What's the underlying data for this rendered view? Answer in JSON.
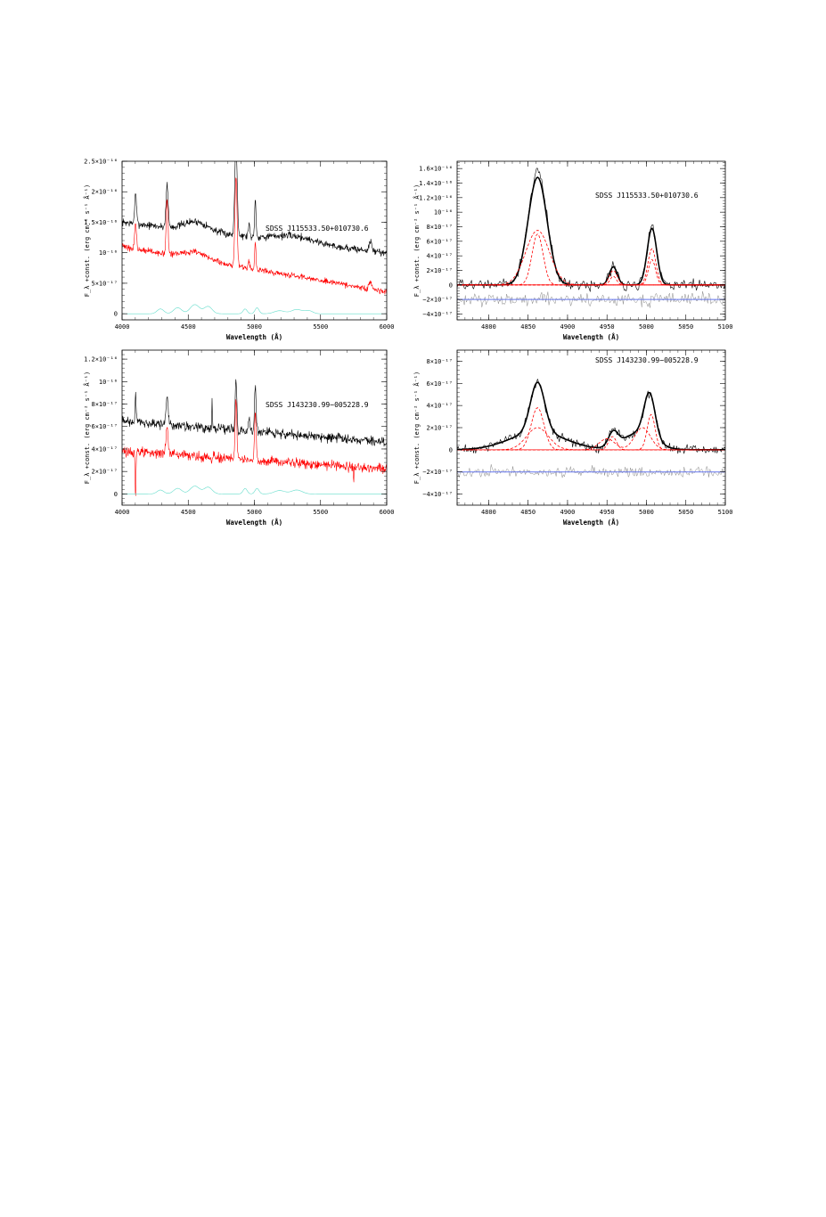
{
  "chart_data": [
    {
      "type": "line",
      "panel": "top-left",
      "object_label": "SDSS  J115533.50+010730.6",
      "xlabel": "Wavelength (Å)",
      "ylabel": "F_λ +const. (erg cm⁻² s⁻¹ Å⁻¹)",
      "xlim": [
        4000,
        6000
      ],
      "ylim": [
        -1e-17,
        2.5e-16
      ],
      "x_ticks": [
        4000,
        4500,
        5000,
        5500,
        6000
      ],
      "x_tick_labels": [
        "4000",
        "4500",
        "5000",
        "5500",
        "6000"
      ],
      "y_ticks": [
        0,
        5e-17,
        1e-16,
        1.5e-16,
        2e-16,
        2.5e-16
      ],
      "y_tick_labels": [
        "0",
        "5×10⁻¹⁷",
        "10⁻¹⁶",
        "1.5×10⁻¹⁶",
        "2×10⁻¹⁶",
        "2.5×10⁻¹⁶"
      ],
      "series": [
        {
          "color": "#000000",
          "style": "noisy",
          "baseline_start": 1.5e-16,
          "baseline_end": 1e-16,
          "noise": 5e-18,
          "peaks": [
            [
              4102,
              5e-17,
              7
            ],
            [
              4340,
              7e-17,
              8
            ],
            [
              4560,
              1.5e-17,
              90
            ],
            [
              4861,
              1.55e-16,
              9
            ],
            [
              4959,
              2e-17,
              6
            ],
            [
              5007,
              6.5e-17,
              5
            ],
            [
              5300,
              1e-17,
              150
            ],
            [
              5876,
              1.5e-17,
              10
            ]
          ]
        },
        {
          "color": "#ff0000",
          "style": "noisy",
          "baseline_start": 1.1e-16,
          "baseline_end": 3.6e-17,
          "noise": 4e-18,
          "peaks": [
            [
              4102,
              4e-17,
              7
            ],
            [
              4340,
              9e-17,
              7
            ],
            [
              4560,
              1.2e-17,
              90
            ],
            [
              4861,
              1.5e-16,
              8
            ],
            [
              4959,
              1.2e-17,
              5
            ],
            [
              5007,
              4.5e-17,
              5
            ],
            [
              5876,
              1.2e-17,
              10
            ]
          ]
        },
        {
          "color": "#66ddcc",
          "style": "smooth",
          "baseline_start": 0,
          "baseline_end": 0,
          "noise": 0,
          "peaks": [
            [
              4290,
              8e-18,
              25
            ],
            [
              4420,
              1e-17,
              30
            ],
            [
              4550,
              1.5e-17,
              35
            ],
            [
              4650,
              1.2e-17,
              30
            ],
            [
              4930,
              8e-18,
              15
            ],
            [
              5020,
              1e-17,
              15
            ],
            [
              5190,
              5e-18,
              40
            ],
            [
              5320,
              7e-18,
              40
            ],
            [
              5410,
              5e-18,
              30
            ]
          ]
        }
      ]
    },
    {
      "type": "line",
      "panel": "top-right",
      "object_label": "SDSS  J115533.50+010730.6",
      "xlabel": "Wavelength (Å)",
      "ylabel": "F_λ +const. (erg cm⁻² s⁻¹ Å⁻¹)",
      "xlim": [
        4760,
        5100
      ],
      "ylim": [
        -4.8e-17,
        1.7e-16
      ],
      "x_ticks": [
        4800,
        4850,
        4900,
        4950,
        5000,
        5050,
        5100
      ],
      "x_tick_labels": [
        "4800",
        "4850",
        "4900",
        "4950",
        "5000",
        "5050",
        "5100"
      ],
      "y_ticks": [
        -4e-17,
        -2e-17,
        0,
        2e-17,
        4e-17,
        6e-17,
        8e-17,
        1e-16,
        1.2e-16,
        1.4e-16,
        1.6e-16
      ],
      "y_tick_labels": [
        "−4×10⁻¹⁷",
        "−2×10⁻¹⁷",
        "0",
        "2×10⁻¹⁷",
        "4×10⁻¹⁷",
        "6×10⁻¹⁷",
        "8×10⁻¹⁷",
        "10⁻¹⁶",
        "1.2×10⁻¹⁶",
        "1.4×10⁻¹⁶",
        "1.6×10⁻¹⁶"
      ],
      "series": [
        {
          "color": "#000000",
          "style": "noisy",
          "width": 0.6,
          "baseline_start": 0,
          "baseline_end": 0,
          "noise": 6e-18,
          "peaks": [
            [
              4862,
              1.55e-16,
              12
            ],
            [
              4958,
              2.7e-17,
              5
            ],
            [
              5007,
              8e-17,
              6
            ]
          ]
        },
        {
          "color": "#000000",
          "style": "smooth",
          "width": 1.6,
          "baseline_start": 0,
          "baseline_end": 0,
          "noise": 0,
          "peaks": [
            [
              4862,
              1.48e-16,
              12
            ],
            [
              4958,
              2.5e-17,
              5
            ],
            [
              5007,
              7.8e-17,
              6
            ]
          ]
        },
        {
          "color": "#ff0000",
          "style": "dashed",
          "width": 0.8,
          "baseline_start": 0,
          "baseline_end": 0,
          "noise": 0,
          "peaks": [
            [
              4862,
              7.5e-17,
              15
            ]
          ]
        },
        {
          "color": "#ff0000",
          "style": "dashed",
          "width": 0.8,
          "baseline_start": 0,
          "baseline_end": 0,
          "noise": 0,
          "peaks": [
            [
              4862,
              7e-17,
              7
            ]
          ]
        },
        {
          "color": "#ff0000",
          "style": "dashed",
          "width": 0.8,
          "baseline_start": 0,
          "baseline_end": 0,
          "noise": 0,
          "peaks": [
            [
              4958,
              2e-17,
              5
            ],
            [
              5007,
              3.5e-17,
              4.5
            ]
          ]
        },
        {
          "color": "#ff0000",
          "style": "dashed",
          "width": 0.8,
          "baseline_start": 0,
          "baseline_end": 0,
          "noise": 0,
          "peaks": [
            [
              4958,
              1.2e-17,
              4
            ],
            [
              5007,
              5e-17,
              5
            ]
          ]
        },
        {
          "color": "#ff0000",
          "style": "flat",
          "width": 0.8,
          "baseline_start": 0,
          "baseline_end": 0,
          "noise": 0,
          "peaks": []
        },
        {
          "color": "#888888",
          "style": "noisy",
          "width": 0.5,
          "baseline_start": -2e-17,
          "baseline_end": -2e-17,
          "noise": 7e-18,
          "peaks": []
        },
        {
          "color": "#6677ee",
          "style": "flat",
          "width": 1,
          "baseline_start": -2e-17,
          "baseline_end": -2e-17,
          "noise": 0,
          "peaks": []
        }
      ]
    },
    {
      "type": "line",
      "panel": "bottom-left",
      "object_label": "SDSS  J143230.99−005228.9",
      "xlabel": "Wavelength (Å)",
      "ylabel": "F_λ +const. (erg cm⁻² s⁻¹ Å⁻¹)",
      "xlim": [
        4000,
        6000
      ],
      "ylim": [
        -1e-17,
        1.28e-16
      ],
      "x_ticks": [
        4000,
        4500,
        5000,
        5500,
        6000
      ],
      "x_tick_labels": [
        "4000",
        "4500",
        "5000",
        "5500",
        "6000"
      ],
      "y_ticks": [
        0,
        2e-17,
        4e-17,
        6e-17,
        8e-17,
        1e-16,
        1.2e-16
      ],
      "y_tick_labels": [
        "0",
        "2×10⁻¹⁷",
        "4×10⁻¹⁷",
        "6×10⁻¹⁷",
        "8×10⁻¹⁷",
        "10⁻¹⁶",
        "1.2×10⁻¹⁶"
      ],
      "series": [
        {
          "color": "#000000",
          "style": "noisy",
          "baseline_start": 6.5e-17,
          "baseline_end": 4.6e-17,
          "noise": 3.5e-18,
          "peaks": [
            [
              4102,
              2.5e-17,
              4
            ],
            [
              4340,
              2.2e-17,
              8
            ],
            [
              4680,
              3e-17,
              2
            ],
            [
              4861,
              4.5e-17,
              6
            ],
            [
              4959,
              1.2e-17,
              5
            ],
            [
              5007,
              4e-17,
              6
            ]
          ]
        },
        {
          "color": "#ff0000",
          "style": "noisy",
          "baseline_start": 3.8e-17,
          "baseline_end": 2.2e-17,
          "noise": 3.5e-18,
          "peaks": [
            [
              4102,
              -4e-17,
              3
            ],
            [
              4340,
              2.5e-17,
              8
            ],
            [
              4861,
              5.5e-17,
              6
            ],
            [
              5007,
              4.5e-17,
              6
            ],
            [
              5750,
              -1.5e-17,
              2
            ]
          ]
        },
        {
          "color": "#66ddcc",
          "style": "smooth",
          "baseline_start": 0,
          "baseline_end": 0,
          "noise": 0,
          "peaks": [
            [
              4290,
              3.5e-18,
              25
            ],
            [
              4420,
              5e-18,
              30
            ],
            [
              4550,
              7e-18,
              35
            ],
            [
              4650,
              6e-18,
              30
            ],
            [
              4930,
              5e-18,
              15
            ],
            [
              5020,
              5e-18,
              15
            ],
            [
              5190,
              3e-18,
              40
            ],
            [
              5320,
              3.5e-18,
              40
            ]
          ]
        }
      ]
    },
    {
      "type": "line",
      "panel": "bottom-right",
      "object_label": "SDSS  J143230.99−005228.9",
      "xlabel": "Wavelength (Å)",
      "ylabel": "F_λ +const. (erg cm⁻² s⁻¹ Å⁻¹)",
      "xlim": [
        4760,
        5100
      ],
      "ylim": [
        -5e-17,
        9e-17
      ],
      "x_ticks": [
        4800,
        4850,
        4900,
        4950,
        5000,
        5050,
        5100
      ],
      "x_tick_labels": [
        "4800",
        "4850",
        "4900",
        "4950",
        "5000",
        "5050",
        "5100"
      ],
      "y_ticks": [
        -4e-17,
        -2e-17,
        0,
        2e-17,
        4e-17,
        6e-17,
        8e-17
      ],
      "y_tick_labels": [
        "−4×10⁻¹⁷",
        "−2×10⁻¹⁷",
        "0",
        "2×10⁻¹⁷",
        "4×10⁻¹⁷",
        "6×10⁻¹⁷",
        "8×10⁻¹⁷"
      ],
      "series": [
        {
          "color": "#000000",
          "style": "noisy",
          "width": 0.6,
          "baseline_start": 0,
          "baseline_end": 0,
          "noise": 3.5e-18,
          "peaks": [
            [
              4862,
              4.5e-17,
              9
            ],
            [
              4862,
              1.6e-17,
              35
            ],
            [
              4958,
              1.3e-17,
              6
            ],
            [
              5004,
              4e-17,
              7
            ],
            [
              4990,
              1.5e-17,
              20
            ]
          ]
        },
        {
          "color": "#000000",
          "style": "smooth",
          "width": 1.6,
          "baseline_start": 0,
          "baseline_end": 0,
          "noise": 0,
          "peaks": [
            [
              4862,
              4.5e-17,
              9
            ],
            [
              4862,
              1.6e-17,
              35
            ],
            [
              4958,
              1.3e-17,
              6
            ],
            [
              5004,
              4e-17,
              7
            ],
            [
              4990,
              1.5e-17,
              20
            ]
          ]
        },
        {
          "color": "#ff0000",
          "style": "dashed",
          "width": 0.8,
          "baseline_start": 0,
          "baseline_end": 0,
          "noise": 0,
          "peaks": [
            [
              4862,
              3.8e-17,
              8
            ]
          ]
        },
        {
          "color": "#ff0000",
          "style": "dashed",
          "width": 0.8,
          "baseline_start": 0,
          "baseline_end": 0,
          "noise": 0,
          "peaks": [
            [
              4862,
              2e-17,
              14
            ]
          ]
        },
        {
          "color": "#ff0000",
          "style": "dashed",
          "width": 0.8,
          "baseline_start": 0,
          "baseline_end": 0,
          "noise": 0,
          "peaks": [
            [
              4957,
              1.2e-17,
              5
            ],
            [
              5006,
              3.2e-17,
              5
            ]
          ]
        },
        {
          "color": "#ff0000",
          "style": "dashed",
          "width": 0.8,
          "baseline_start": 0,
          "baseline_end": 0,
          "noise": 0,
          "peaks": [
            [
              4950,
              1e-17,
              10
            ],
            [
              4995,
              2e-17,
              10
            ]
          ]
        },
        {
          "color": "#ff0000",
          "style": "flat",
          "width": 0.8,
          "baseline_start": 0,
          "baseline_end": 0,
          "noise": 0,
          "peaks": []
        },
        {
          "color": "#888888",
          "style": "noisy",
          "width": 0.5,
          "baseline_start": -2e-17,
          "baseline_end": -2e-17,
          "noise": 4e-18,
          "peaks": []
        },
        {
          "color": "#6677ee",
          "style": "flat",
          "width": 1,
          "baseline_start": -2e-17,
          "baseline_end": -2e-17,
          "noise": 0,
          "peaks": []
        }
      ]
    }
  ]
}
